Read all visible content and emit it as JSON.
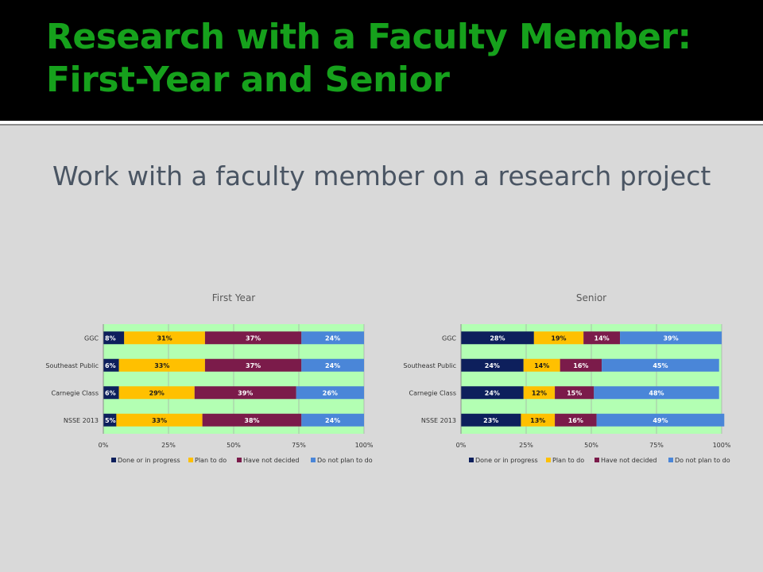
{
  "slide": {
    "title_line1": "Research with a Faculty Member:",
    "title_line2": "First-Year and Senior",
    "subtitle": "Work with a faculty member on a research project"
  },
  "colors": {
    "header_bg": "#000000",
    "title": "#16a11c",
    "slide_bg": "#d9d9d9",
    "plot_bg": "#b3ffb3",
    "series": [
      "#0d1f5c",
      "#ffc000",
      "#7b1b4a",
      "#4a86d8"
    ]
  },
  "chart_data": [
    {
      "type": "bar",
      "orientation": "horizontal",
      "stacked": "percent",
      "title": "First Year",
      "categories": [
        "GGC",
        "Southeast Public",
        "Carnegie Class",
        "NSSE 2013"
      ],
      "series": [
        {
          "name": "Done or in progress",
          "values": [
            8,
            6,
            6,
            5
          ]
        },
        {
          "name": "Plan to do",
          "values": [
            31,
            33,
            29,
            33
          ]
        },
        {
          "name": "Have not decided",
          "values": [
            37,
            37,
            39,
            38
          ]
        },
        {
          "name": "Do not plan to do",
          "values": [
            24,
            24,
            26,
            24
          ]
        }
      ],
      "value_labels": [
        [
          "8%",
          "6%",
          "6%",
          "5%"
        ],
        [
          "31%",
          "33%",
          "29%",
          "33%"
        ],
        [
          "37%",
          "37%",
          "39%",
          "38%"
        ],
        [
          "24%",
          "24%",
          "26%",
          "24%"
        ]
      ],
      "xticks": [
        "0%",
        "25%",
        "50%",
        "75%",
        "100%"
      ],
      "xlim": [
        0,
        100
      ],
      "grid": true,
      "legend": "bottom"
    },
    {
      "type": "bar",
      "orientation": "horizontal",
      "stacked": "percent",
      "title": "Senior",
      "categories": [
        "GGC",
        "Southeast Public",
        "Carnegie Class",
        "NSSE 2013"
      ],
      "series": [
        {
          "name": "Done or in progress",
          "values": [
            28,
            24,
            24,
            23
          ]
        },
        {
          "name": "Plan to do",
          "values": [
            19,
            14,
            12,
            13
          ]
        },
        {
          "name": "Have not decided",
          "values": [
            14,
            16,
            15,
            16
          ]
        },
        {
          "name": "Do not plan to do",
          "values": [
            39,
            45,
            48,
            49
          ]
        }
      ],
      "value_labels": [
        [
          "28%",
          "24%",
          "24%",
          "23%"
        ],
        [
          "19%",
          "14%",
          "12%",
          "13%"
        ],
        [
          "14%",
          "16%",
          "15%",
          "16%"
        ],
        [
          "39%",
          "45%",
          "48%",
          "49%"
        ]
      ],
      "xticks": [
        "0%",
        "25%",
        "50%",
        "75%",
        "100%"
      ],
      "xlim": [
        0,
        100
      ],
      "grid": true,
      "legend": "bottom"
    }
  ]
}
